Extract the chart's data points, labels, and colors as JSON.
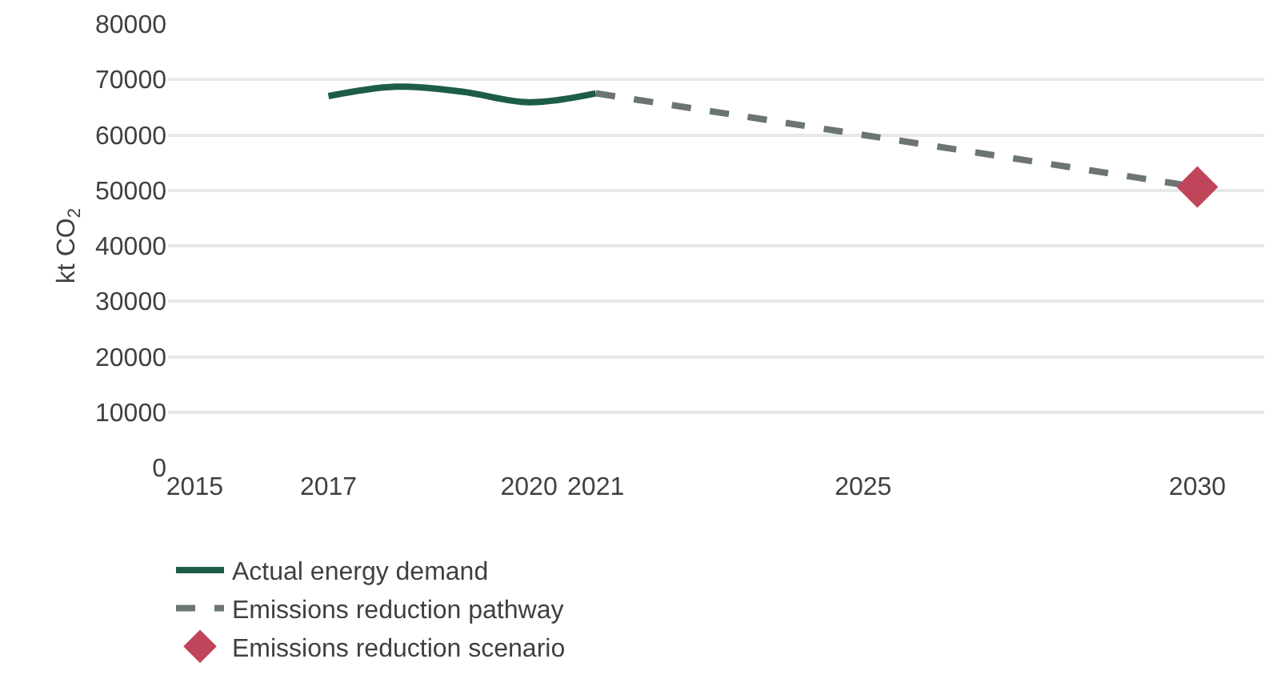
{
  "chart_data": {
    "type": "line",
    "ylabel": "kt CO$_{2}$",
    "xlim": [
      2014.6,
      2031
    ],
    "xticks": [
      2015,
      2017,
      2020,
      2021,
      2025,
      2030
    ],
    "ylim": [
      0,
      80000
    ],
    "yticks": [
      0,
      10000,
      20000,
      30000,
      40000,
      50000,
      60000,
      70000,
      80000
    ],
    "grid": "y",
    "legend": "bottom",
    "series": [
      {
        "name": "Actual energy demand",
        "color": "#1e5c4a",
        "x": [
          2017,
          2018,
          2019,
          2020,
          2021
        ],
        "values": [
          67000,
          68700,
          67800,
          65900,
          67500
        ],
        "line_style": "solid",
        "marker": "none"
      },
      {
        "name": "Emissions reduction pathway",
        "color": "#6b7572",
        "x": [
          2021,
          2025,
          2030
        ],
        "values": [
          67500,
          60000,
          50600
        ],
        "line_style": "dashed",
        "marker": "none"
      },
      {
        "name": "Emissions reduction scenario",
        "color": "#c0455a",
        "x": [
          2030
        ],
        "values": [
          50600
        ],
        "marker": "diamond"
      }
    ]
  }
}
